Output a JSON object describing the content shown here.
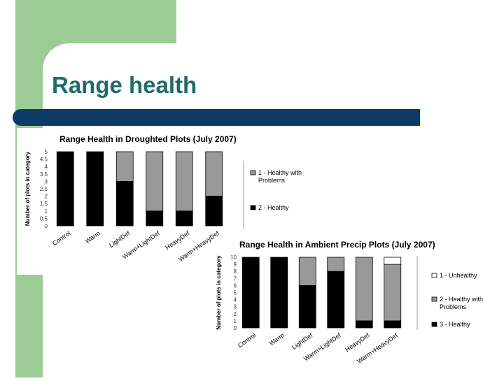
{
  "slide": {
    "title": "Range health",
    "colors": {
      "green": "#9ccc95",
      "navy": "#0d3b66",
      "title": "#1f6b6b"
    }
  },
  "chart_data": [
    {
      "type": "bar",
      "stacked": true,
      "title": "Range Health in Droughted Plots (July 2007)",
      "ylabel": "Number of plots in category",
      "ylim": [
        0,
        5
      ],
      "yticks": [
        "0",
        "0.5",
        "1",
        "1.5",
        "2",
        "2.5",
        "3",
        "3.5",
        "4",
        "4.5",
        "5"
      ],
      "categories": [
        "Control",
        "Warm",
        "LightDef",
        "Warm+LightDef",
        "HeavyDef",
        "Warm+HeavyDef"
      ],
      "series": [
        {
          "name": "2 - Healthy",
          "color": "#000000",
          "values": [
            5,
            5,
            3,
            1,
            1,
            2
          ]
        },
        {
          "name": "1 - Healthy with Problems",
          "color": "#999999",
          "values": [
            0,
            0,
            2,
            4,
            4,
            3
          ]
        }
      ],
      "legend": [
        {
          "label": "1 - Healthy with",
          "label2": "Problems",
          "color": "#999999"
        },
        {
          "label": "2 - Healthy",
          "label2": "",
          "color": "#000000"
        }
      ]
    },
    {
      "type": "bar",
      "stacked": true,
      "title": "Range Health in Ambient Precip Plots (July 2007)",
      "ylabel": "Number of plots in category",
      "ylim": [
        0,
        10
      ],
      "yticks": [
        "0",
        "1",
        "2",
        "3",
        "4",
        "5",
        "6",
        "7",
        "8",
        "9",
        "10"
      ],
      "categories": [
        "Control",
        "Warm",
        "LightDef",
        "Warm+LightDef",
        "HeavyDef",
        "Warm+HeavyDef"
      ],
      "series": [
        {
          "name": "3 - Healthy",
          "color": "#000000",
          "values": [
            10,
            10,
            6,
            8,
            1,
            1
          ]
        },
        {
          "name": "2 - Healthy with Problems",
          "color": "#999999",
          "values": [
            0,
            0,
            4,
            2,
            9,
            8
          ]
        },
        {
          "name": "1 - Unhealthy",
          "color": "#ffffff",
          "values": [
            0,
            0,
            0,
            0,
            0,
            1
          ]
        }
      ],
      "legend": [
        {
          "label": "1 - Unhealthy",
          "label2": "",
          "color": "#ffffff"
        },
        {
          "label": "2 - Healthy with",
          "label2": "Problems",
          "color": "#999999"
        },
        {
          "label": "3 - Healthy",
          "label2": "",
          "color": "#000000"
        }
      ]
    }
  ]
}
